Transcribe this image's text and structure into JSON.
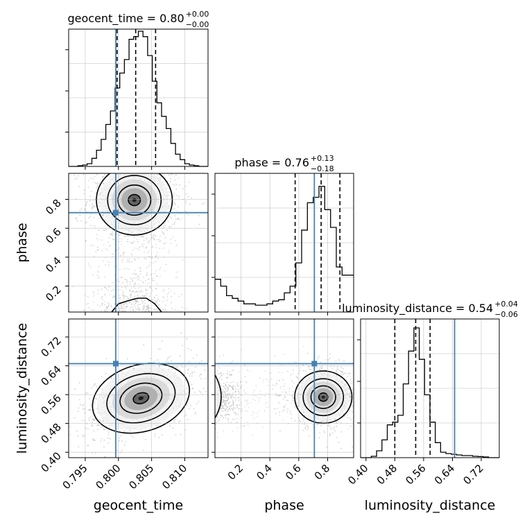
{
  "chart_data": {
    "type": "corner",
    "parameters": [
      "geocent_time",
      "phase",
      "luminosity_distance"
    ],
    "truth": [
      0.7996,
      0.708,
      0.646
    ],
    "truth_color": "#4682b4",
    "titles": [
      {
        "main": "geocent_time = 0.80",
        "sup": "+0.00",
        "sub": "−0.00"
      },
      {
        "main": "phase = 0.76",
        "sup": "+0.13",
        "sub": "−0.18"
      },
      {
        "main": "luminosity_distance = 0.54",
        "sup": "+0.04",
        "sub": "−0.06"
      }
    ],
    "axes": {
      "geocent_time": {
        "range": [
          0.7925,
          0.8135
        ],
        "ticks": [
          0.795,
          0.8,
          0.805,
          0.81
        ],
        "tick_labels": [
          "0.795",
          "0.800",
          "0.805",
          "0.810"
        ]
      },
      "phase": {
        "range": [
          0.02,
          0.98
        ],
        "ticks": [
          0.2,
          0.4,
          0.6,
          0.8
        ],
        "tick_labels": [
          "0.2",
          "0.4",
          "0.6",
          "0.8"
        ]
      },
      "luminosity_distance": {
        "range": [
          0.385,
          0.77
        ],
        "ticks": [
          0.4,
          0.48,
          0.56,
          0.64,
          0.72
        ],
        "tick_labels": [
          "0.40",
          "0.48",
          "0.56",
          "0.64",
          "0.72"
        ]
      }
    },
    "quantiles": {
      "geocent_time": [
        0.7998,
        0.8026,
        0.8056
      ],
      "phase": [
        0.575,
        0.755,
        0.885
      ],
      "luminosity_distance": [
        0.48,
        0.538,
        0.578
      ]
    },
    "histograms": {
      "geocent_time": {
        "edges": [
          0.7925,
          0.8135
        ],
        "counts": [
          0,
          0,
          0.005,
          0.01,
          0.02,
          0.06,
          0.12,
          0.2,
          0.31,
          0.41,
          0.58,
          0.69,
          0.79,
          0.94,
          0.96,
          1.0,
          0.96,
          0.82,
          0.63,
          0.47,
          0.37,
          0.28,
          0.17,
          0.09,
          0.05,
          0.02,
          0.01,
          0.005,
          0,
          0
        ]
      },
      "phase": {
        "edges": [
          0.02,
          0.98
        ],
        "counts": [
          0.24,
          0.19,
          0.12,
          0.1,
          0.08,
          0.06,
          0.06,
          0.05,
          0.05,
          0.06,
          0.08,
          0.09,
          0.14,
          0.19,
          0.36,
          0.6,
          0.8,
          0.84,
          0.92,
          0.75,
          0.62,
          0.33,
          0.27,
          0.27
        ]
      },
      "luminosity_distance": {
        "edges": [
          0.385,
          0.77
        ],
        "counts": [
          0,
          0,
          0.01,
          0.05,
          0.13,
          0.24,
          0.26,
          0.31,
          0.54,
          0.78,
          0.95,
          0.72,
          0.46,
          0.26,
          0.11,
          0.04,
          0.03,
          0.025,
          0.02,
          0.015,
          0.015,
          0.01,
          0.008,
          0.005,
          0,
          0
        ]
      }
    },
    "posterior_2d": [
      {
        "x": "geocent_time",
        "y": "phase",
        "center": [
          0.8024,
          0.795
        ],
        "spread": [
          0.0026,
          0.11
        ],
        "correlation": 0.0
      },
      {
        "x": "geocent_time",
        "y": "luminosity_distance",
        "center": [
          0.8034,
          0.55
        ],
        "spread": [
          0.0034,
          0.042
        ],
        "correlation": 0.45
      },
      {
        "x": "phase",
        "y": "luminosity_distance",
        "center": [
          0.77,
          0.553
        ],
        "spread": [
          0.09,
          0.03
        ],
        "correlation": 0.0
      }
    ],
    "grid": true,
    "legend": "none"
  }
}
